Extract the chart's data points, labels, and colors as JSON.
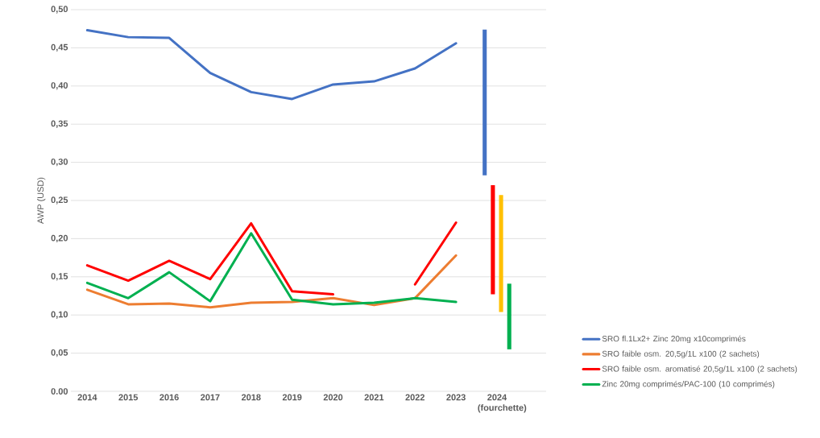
{
  "chart_data": {
    "type": "line",
    "ylabel": "AWP (USD)",
    "categories": [
      "2014",
      "2015",
      "2016",
      "2017",
      "2018",
      "2019",
      "2020",
      "2021",
      "2022",
      "2023",
      "2024 (fourchette)"
    ],
    "ylim": [
      0,
      0.5
    ],
    "yticks": [
      {
        "value": 0,
        "label": "0.00"
      },
      {
        "value": 0.05,
        "label": "0,05"
      },
      {
        "value": 0.1,
        "label": "0,10"
      },
      {
        "value": 0.15,
        "label": "0,15"
      },
      {
        "value": 0.2,
        "label": "0,20"
      },
      {
        "value": 0.25,
        "label": "0,25"
      },
      {
        "value": 0.3,
        "label": "0,30"
      },
      {
        "value": 0.35,
        "label": "0,35"
      },
      {
        "value": 0.4,
        "label": "0,40"
      },
      {
        "value": 0.45,
        "label": "0,45"
      },
      {
        "value": 0.5,
        "label": "0,50"
      }
    ],
    "grid": "y",
    "legend": "bottom right",
    "line_style": "solid",
    "series": [
      {
        "name": "SRO fl.1Lx2+ Zinc 20mg x10comprimés",
        "color": "#4472c4",
        "values": [
          0.473,
          0.464,
          0.463,
          0.417,
          0.392,
          0.383,
          0.402,
          0.406,
          0.423,
          0.456,
          null
        ]
      },
      {
        "name": "SRO faible osm. 20,5g/1L x100 (2 sachets)",
        "color": "#ed7d31",
        "values": [
          0.133,
          0.114,
          0.115,
          0.11,
          0.116,
          0.117,
          0.122,
          0.113,
          0.122,
          0.178,
          null
        ]
      },
      {
        "name": "SRO faible osm. aromatisé 20,5g/1L x100 (2 sachets)",
        "color": "#ff0000",
        "values": [
          0.165,
          0.145,
          0.171,
          0.147,
          0.22,
          0.131,
          0.127,
          null,
          0.14,
          0.221,
          null
        ]
      },
      {
        "name": "Zinc 20mg comprimés/PAC-100 (10 comprimés)",
        "color": "#00b050",
        "values": [
          0.142,
          0.122,
          0.156,
          0.118,
          0.207,
          0.12,
          0.114,
          0.116,
          0.122,
          0.117,
          null
        ]
      },
      {
        "type": "bar",
        "color": "#4472c4",
        "values": [
          null,
          null,
          null,
          null,
          null,
          null,
          null,
          null,
          null,
          null,
          0.191
        ],
        "base": [
          null,
          null,
          null,
          null,
          null,
          null,
          null,
          null,
          null,
          null,
          0.283
        ]
      },
      {
        "type": "bar",
        "color": "#ff0000",
        "values": [
          null,
          null,
          null,
          null,
          null,
          null,
          null,
          null,
          null,
          null,
          0.143
        ],
        "base": [
          null,
          null,
          null,
          null,
          null,
          null,
          null,
          null,
          null,
          null,
          0.127
        ]
      },
      {
        "type": "bar",
        "color": "#ffc000",
        "values": [
          null,
          null,
          null,
          null,
          null,
          null,
          null,
          null,
          null,
          null,
          0.153
        ],
        "base": [
          null,
          null,
          null,
          null,
          null,
          null,
          null,
          null,
          null,
          null,
          0.104
        ]
      },
      {
        "type": "bar",
        "color": "#00b050",
        "values": [
          null,
          null,
          null,
          null,
          null,
          null,
          null,
          null,
          null,
          null,
          0.086
        ],
        "base": [
          null,
          null,
          null,
          null,
          null,
          null,
          null,
          null,
          null,
          null,
          0.055
        ]
      }
    ]
  }
}
